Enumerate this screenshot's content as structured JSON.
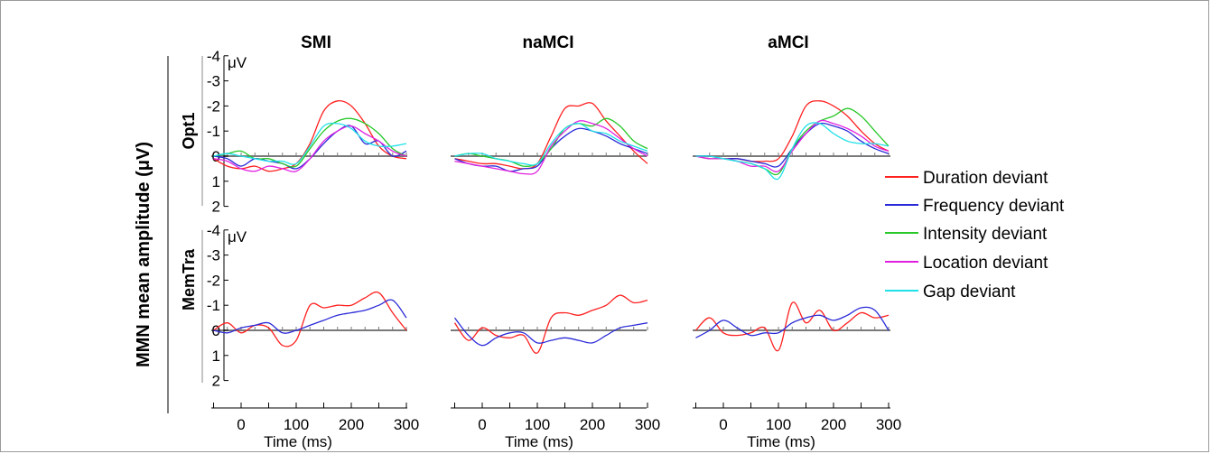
{
  "figure": {
    "ylabel": "MMN mean amplitude (μV)",
    "columns": [
      "SMI",
      "naMCI",
      "aMCI"
    ],
    "rows": [
      "Opt1",
      "MemTra"
    ],
    "unit_label": "μV",
    "xlabel": "Time (ms)"
  },
  "legend": [
    {
      "name": "Duration deviant",
      "color": "#ff2020"
    },
    {
      "name": "Frequency deviant",
      "color": "#2a2ad8"
    },
    {
      "name": "Intensity deviant",
      "color": "#28c828"
    },
    {
      "name": "Location deviant",
      "color": "#e020e0"
    },
    {
      "name": "Gap deviant",
      "color": "#20e0e8"
    }
  ],
  "chart_data": [
    {
      "type": "line",
      "panel": "SMI / Opt1",
      "xlabel": "Time (ms)",
      "ylabel": "μV",
      "xlim": [
        -50,
        300
      ],
      "ylim": [
        -4,
        2
      ],
      "y_inverted": true,
      "xticks": [
        0,
        100,
        200,
        300
      ],
      "yticks": [
        -4,
        -3,
        -2,
        -1,
        0,
        1,
        2
      ],
      "series": [
        {
          "name": "Duration deviant",
          "x": [
            -50,
            -25,
            0,
            25,
            50,
            75,
            100,
            125,
            150,
            175,
            200,
            225,
            250,
            275,
            300
          ],
          "y": [
            0.1,
            0.4,
            0.5,
            0.4,
            0.6,
            0.5,
            0.3,
            -0.5,
            -1.8,
            -2.2,
            -2.0,
            -1.3,
            -0.4,
            0.0,
            0.1
          ]
        },
        {
          "name": "Frequency deviant",
          "x": [
            -50,
            -25,
            0,
            25,
            50,
            75,
            100,
            125,
            150,
            175,
            200,
            225,
            250,
            275,
            300
          ],
          "y": [
            0.0,
            0.1,
            0.4,
            0.1,
            0.2,
            0.3,
            0.5,
            0.1,
            -0.5,
            -1.0,
            -1.2,
            -0.5,
            -0.6,
            0.0,
            -0.2
          ]
        },
        {
          "name": "Intensity deviant",
          "x": [
            -50,
            -25,
            0,
            25,
            50,
            75,
            100,
            125,
            150,
            175,
            200,
            225,
            250,
            275,
            300
          ],
          "y": [
            0.0,
            -0.1,
            -0.2,
            0.1,
            0.1,
            0.3,
            0.4,
            -0.3,
            -1.0,
            -1.4,
            -1.5,
            -1.3,
            -0.9,
            -0.3,
            0.0
          ]
        },
        {
          "name": "Location deviant",
          "x": [
            -50,
            -25,
            0,
            25,
            50,
            75,
            100,
            125,
            150,
            175,
            200,
            225,
            250,
            275,
            300
          ],
          "y": [
            0.1,
            0.2,
            0.5,
            0.6,
            0.4,
            0.5,
            0.6,
            0.1,
            -0.6,
            -1.0,
            -1.2,
            -0.9,
            -0.6,
            -0.2,
            0.0
          ]
        },
        {
          "name": "Gap deviant",
          "x": [
            -50,
            -25,
            0,
            25,
            50,
            75,
            100,
            125,
            150,
            175,
            200,
            225,
            250,
            275,
            300
          ],
          "y": [
            0.0,
            -0.1,
            0.0,
            0.1,
            0.2,
            0.2,
            0.3,
            -0.4,
            -1.2,
            -1.3,
            -1.1,
            -0.6,
            -0.4,
            -0.4,
            -0.5
          ]
        }
      ]
    },
    {
      "type": "line",
      "panel": "naMCI / Opt1",
      "xlabel": "Time (ms)",
      "ylabel": "μV",
      "xlim": [
        -50,
        300
      ],
      "ylim": [
        -4,
        2
      ],
      "y_inverted": true,
      "xticks": [
        0,
        100,
        200,
        300
      ],
      "yticks": [
        -4,
        -3,
        -2,
        -1,
        0,
        1,
        2
      ],
      "series": [
        {
          "name": "Duration deviant",
          "x": [
            -50,
            -25,
            0,
            25,
            50,
            75,
            100,
            125,
            150,
            175,
            200,
            225,
            250,
            275,
            300
          ],
          "y": [
            0.1,
            0.2,
            0.3,
            0.3,
            0.4,
            0.5,
            0.3,
            -0.8,
            -1.9,
            -2.0,
            -2.1,
            -1.4,
            -0.8,
            -0.2,
            0.3
          ]
        },
        {
          "name": "Frequency deviant",
          "x": [
            -50,
            -25,
            0,
            25,
            50,
            75,
            100,
            125,
            150,
            175,
            200,
            225,
            250,
            275,
            300
          ],
          "y": [
            0.1,
            0.3,
            0.4,
            0.4,
            0.6,
            0.5,
            0.4,
            -0.3,
            -0.8,
            -1.1,
            -1.0,
            -0.8,
            -0.5,
            -0.3,
            -0.1
          ]
        },
        {
          "name": "Intensity deviant",
          "x": [
            -50,
            -25,
            0,
            25,
            50,
            75,
            100,
            125,
            150,
            175,
            200,
            225,
            250,
            275,
            300
          ],
          "y": [
            0.0,
            -0.1,
            0.0,
            0.1,
            0.2,
            0.4,
            0.3,
            -0.3,
            -1.1,
            -1.3,
            -1.2,
            -1.5,
            -1.2,
            -0.6,
            -0.3
          ]
        },
        {
          "name": "Location deviant",
          "x": [
            -50,
            -25,
            0,
            25,
            50,
            75,
            100,
            125,
            150,
            175,
            200,
            225,
            250,
            275,
            300
          ],
          "y": [
            0.2,
            0.3,
            0.4,
            0.5,
            0.6,
            0.7,
            0.6,
            -0.4,
            -1.0,
            -1.4,
            -1.3,
            -1.1,
            -0.7,
            -0.3,
            0.0
          ]
        },
        {
          "name": "Gap deviant",
          "x": [
            -50,
            -25,
            0,
            25,
            50,
            75,
            100,
            125,
            150,
            175,
            200,
            225,
            250,
            275,
            300
          ],
          "y": [
            0.0,
            -0.1,
            -0.1,
            0.1,
            0.2,
            0.3,
            0.3,
            -0.5,
            -1.1,
            -1.3,
            -1.0,
            -0.9,
            -0.6,
            -0.4,
            -0.2
          ]
        }
      ]
    },
    {
      "type": "line",
      "panel": "aMCI / Opt1",
      "xlabel": "Time (ms)",
      "ylabel": "μV",
      "xlim": [
        -50,
        300
      ],
      "ylim": [
        -4,
        2
      ],
      "y_inverted": true,
      "xticks": [
        0,
        100,
        200,
        300
      ],
      "yticks": [
        -4,
        -3,
        -2,
        -1,
        0,
        1,
        2
      ],
      "series": [
        {
          "name": "Duration deviant",
          "x": [
            -50,
            -25,
            0,
            25,
            50,
            75,
            100,
            125,
            150,
            175,
            200,
            225,
            250,
            275,
            300
          ],
          "y": [
            0.0,
            0.0,
            0.1,
            0.1,
            0.2,
            0.2,
            0.1,
            -0.8,
            -2.0,
            -2.2,
            -2.0,
            -1.6,
            -1.0,
            -0.5,
            -0.2
          ]
        },
        {
          "name": "Frequency deviant",
          "x": [
            -50,
            -25,
            0,
            25,
            50,
            75,
            100,
            125,
            150,
            175,
            200,
            225,
            250,
            275,
            300
          ],
          "y": [
            0.0,
            0.0,
            0.1,
            0.1,
            0.2,
            0.3,
            0.4,
            -0.3,
            -0.9,
            -1.3,
            -1.2,
            -1.0,
            -0.6,
            -0.3,
            -0.1
          ]
        },
        {
          "name": "Intensity deviant",
          "x": [
            -50,
            -25,
            0,
            25,
            50,
            75,
            100,
            125,
            150,
            175,
            200,
            225,
            250,
            275,
            300
          ],
          "y": [
            0.0,
            0.1,
            0.1,
            0.2,
            0.3,
            0.5,
            0.7,
            -0.3,
            -1.0,
            -1.4,
            -1.6,
            -1.9,
            -1.6,
            -1.0,
            -0.4
          ]
        },
        {
          "name": "Location deviant",
          "x": [
            -50,
            -25,
            0,
            25,
            50,
            75,
            100,
            125,
            150,
            175,
            200,
            225,
            250,
            275,
            300
          ],
          "y": [
            0.0,
            0.1,
            0.1,
            0.2,
            0.4,
            0.4,
            0.6,
            -0.2,
            -0.9,
            -1.4,
            -1.3,
            -1.1,
            -0.8,
            -0.4,
            -0.2
          ]
        },
        {
          "name": "Gap deviant",
          "x": [
            -50,
            -25,
            0,
            25,
            50,
            75,
            100,
            125,
            150,
            175,
            200,
            225,
            250,
            275,
            300
          ],
          "y": [
            0.0,
            0.0,
            0.1,
            0.2,
            0.3,
            0.5,
            0.9,
            -0.3,
            -1.2,
            -1.3,
            -0.9,
            -0.6,
            -0.5,
            -0.5,
            -0.4
          ]
        }
      ]
    },
    {
      "type": "line",
      "panel": "SMI / MemTra",
      "xlabel": "Time (ms)",
      "ylabel": "μV",
      "xlim": [
        -50,
        300
      ],
      "ylim": [
        -4,
        2
      ],
      "y_inverted": true,
      "xticks": [
        0,
        100,
        200,
        300
      ],
      "yticks": [
        -4,
        -3,
        -2,
        -1,
        0,
        1,
        2
      ],
      "series": [
        {
          "name": "Duration deviant",
          "x": [
            -50,
            -25,
            0,
            25,
            50,
            75,
            100,
            125,
            150,
            175,
            200,
            225,
            250,
            275,
            300
          ],
          "y": [
            0.0,
            -0.3,
            0.1,
            -0.2,
            -0.1,
            0.6,
            0.4,
            -1.0,
            -0.9,
            -1.0,
            -1.0,
            -1.3,
            -1.5,
            -0.7,
            0.0
          ]
        },
        {
          "name": "Frequency deviant",
          "x": [
            -50,
            -25,
            0,
            25,
            50,
            75,
            100,
            125,
            150,
            175,
            200,
            225,
            250,
            275,
            300
          ],
          "y": [
            0.0,
            0.1,
            -0.1,
            -0.2,
            -0.3,
            0.1,
            0.0,
            -0.2,
            -0.4,
            -0.6,
            -0.7,
            -0.8,
            -1.0,
            -1.2,
            -0.5
          ]
        }
      ]
    },
    {
      "type": "line",
      "panel": "naMCI / MemTra",
      "xlabel": "Time (ms)",
      "ylabel": "μV",
      "xlim": [
        -50,
        300
      ],
      "ylim": [
        -4,
        2
      ],
      "y_inverted": true,
      "xticks": [
        0,
        100,
        200,
        300
      ],
      "yticks": [
        -4,
        -3,
        -2,
        -1,
        0,
        1,
        2
      ],
      "series": [
        {
          "name": "Duration deviant",
          "x": [
            -50,
            -25,
            0,
            25,
            50,
            75,
            100,
            125,
            150,
            175,
            200,
            225,
            250,
            275,
            300
          ],
          "y": [
            -0.3,
            0.4,
            -0.1,
            0.2,
            0.3,
            0.2,
            0.9,
            -0.5,
            -0.7,
            -0.6,
            -0.8,
            -1.0,
            -1.4,
            -1.1,
            -1.2
          ]
        },
        {
          "name": "Frequency deviant",
          "x": [
            -50,
            -25,
            0,
            25,
            50,
            75,
            100,
            125,
            150,
            175,
            200,
            225,
            250,
            275,
            300
          ],
          "y": [
            -0.5,
            0.2,
            0.6,
            0.3,
            0.1,
            0.1,
            0.5,
            0.4,
            0.3,
            0.4,
            0.5,
            0.2,
            -0.1,
            -0.2,
            -0.3
          ]
        }
      ]
    },
    {
      "type": "line",
      "panel": "aMCI / MemTra",
      "xlabel": "Time (ms)",
      "ylabel": "μV",
      "xlim": [
        -50,
        300
      ],
      "ylim": [
        -4,
        2
      ],
      "y_inverted": true,
      "xticks": [
        0,
        100,
        200,
        300
      ],
      "yticks": [
        -4,
        -3,
        -2,
        -1,
        0,
        1,
        2
      ],
      "series": [
        {
          "name": "Duration deviant",
          "x": [
            -50,
            -25,
            0,
            25,
            50,
            75,
            100,
            125,
            150,
            175,
            200,
            225,
            250,
            275,
            300
          ],
          "y": [
            0.0,
            -0.5,
            0.1,
            0.2,
            0.1,
            -0.1,
            0.8,
            -1.1,
            -0.3,
            -0.8,
            0.0,
            -0.3,
            -0.7,
            -0.5,
            -0.6
          ]
        },
        {
          "name": "Frequency deviant",
          "x": [
            -50,
            -25,
            0,
            25,
            50,
            75,
            100,
            125,
            150,
            175,
            200,
            225,
            250,
            275,
            300
          ],
          "y": [
            0.3,
            0.0,
            -0.4,
            -0.1,
            0.2,
            0.1,
            0.1,
            -0.3,
            -0.5,
            -0.6,
            -0.4,
            -0.6,
            -0.9,
            -0.8,
            0.0
          ]
        }
      ]
    }
  ]
}
